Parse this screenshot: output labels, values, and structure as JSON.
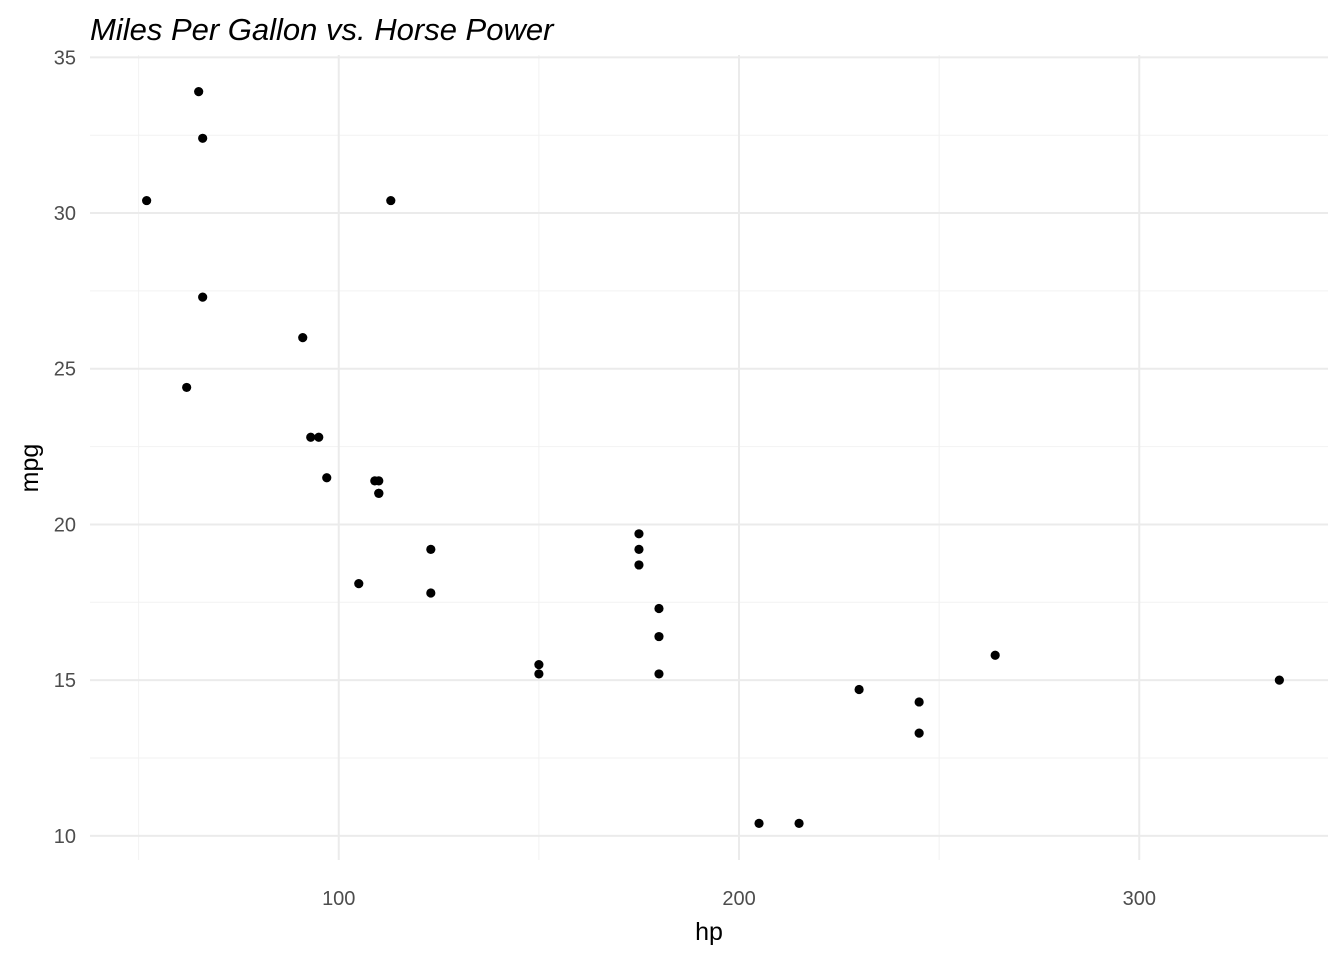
{
  "chart_data": {
    "type": "scatter",
    "title": "Miles Per Gallon vs. Horse Power",
    "xlabel": "hp",
    "ylabel": "mpg",
    "xlim": [
      37.85,
      347.15
    ],
    "ylim": [
      9.225,
      35.075
    ],
    "x_major_ticks": [
      100,
      200,
      300
    ],
    "x_minor_ticks": [
      50,
      150,
      250
    ],
    "y_major_ticks": [
      10,
      15,
      20,
      25,
      30,
      35
    ],
    "y_minor_ticks": [
      12.5,
      17.5,
      22.5,
      27.5,
      32.5
    ],
    "grid": true,
    "legend": "none",
    "color": "#000000",
    "points": [
      {
        "x": 110,
        "y": 21.0
      },
      {
        "x": 110,
        "y": 21.0
      },
      {
        "x": 93,
        "y": 22.8
      },
      {
        "x": 110,
        "y": 21.4
      },
      {
        "x": 175,
        "y": 18.7
      },
      {
        "x": 105,
        "y": 18.1
      },
      {
        "x": 245,
        "y": 14.3
      },
      {
        "x": 62,
        "y": 24.4
      },
      {
        "x": 95,
        "y": 22.8
      },
      {
        "x": 123,
        "y": 19.2
      },
      {
        "x": 123,
        "y": 17.8
      },
      {
        "x": 180,
        "y": 16.4
      },
      {
        "x": 180,
        "y": 17.3
      },
      {
        "x": 180,
        "y": 15.2
      },
      {
        "x": 205,
        "y": 10.4
      },
      {
        "x": 215,
        "y": 10.4
      },
      {
        "x": 230,
        "y": 14.7
      },
      {
        "x": 66,
        "y": 32.4
      },
      {
        "x": 52,
        "y": 30.4
      },
      {
        "x": 65,
        "y": 33.9
      },
      {
        "x": 97,
        "y": 21.5
      },
      {
        "x": 150,
        "y": 15.5
      },
      {
        "x": 150,
        "y": 15.2
      },
      {
        "x": 245,
        "y": 13.3
      },
      {
        "x": 175,
        "y": 19.2
      },
      {
        "x": 66,
        "y": 27.3
      },
      {
        "x": 91,
        "y": 26.0
      },
      {
        "x": 113,
        "y": 30.4
      },
      {
        "x": 264,
        "y": 15.8
      },
      {
        "x": 175,
        "y": 19.7
      },
      {
        "x": 335,
        "y": 15.0
      },
      {
        "x": 109,
        "y": 21.4
      }
    ]
  }
}
